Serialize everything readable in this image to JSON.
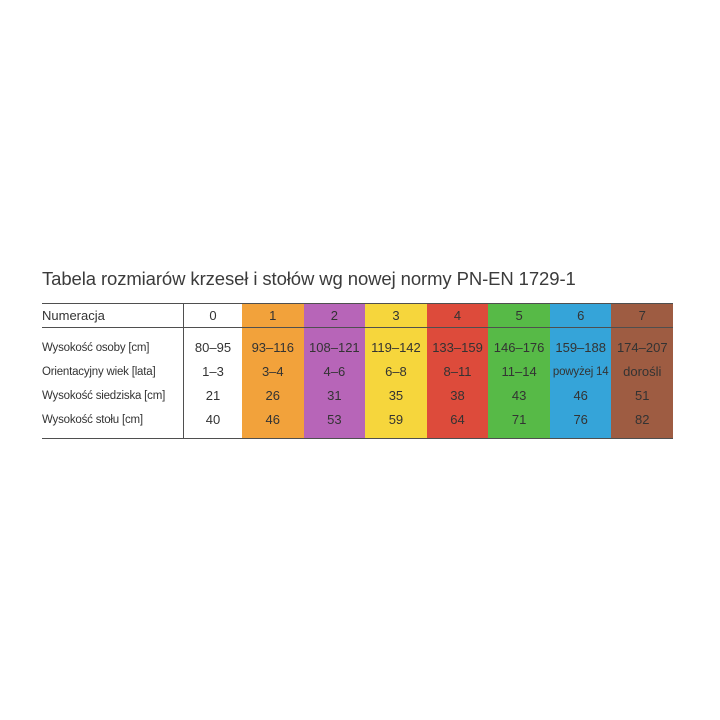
{
  "title": "Tabela rozmiarów krzeseł i stołów wg nowej normy PN-EN 1729-1",
  "colors": {
    "background": "#ffffff",
    "rule": "#4f4f4f",
    "text": "#333333",
    "title_text": "#3b3b3b"
  },
  "chart_data": {
    "type": "table",
    "title": "Tabela rozmiarów krzeseł i stołów wg nowej normy PN-EN 1729-1",
    "row_headers": [
      "Numeracja",
      "Wysokość osoby [cm]",
      "Orientacyjny wiek [lata]",
      "Wysokość siedziska [cm]",
      "Wysokość stołu [cm]"
    ],
    "columns": [
      {
        "numeracja": "0",
        "color": "#ffffff",
        "values": [
          "80–95",
          "1–3",
          "21",
          "40"
        ]
      },
      {
        "numeracja": "1",
        "color": "#f2a23b",
        "values": [
          "93–116",
          "3–4",
          "26",
          "46"
        ]
      },
      {
        "numeracja": "2",
        "color": "#b765b8",
        "values": [
          "108–121",
          "4–6",
          "31",
          "53"
        ]
      },
      {
        "numeracja": "3",
        "color": "#f6d63c",
        "values": [
          "119–142",
          "6–8",
          "35",
          "59"
        ]
      },
      {
        "numeracja": "4",
        "color": "#dd4b3b",
        "values": [
          "133–159",
          "8–11",
          "38",
          "64"
        ]
      },
      {
        "numeracja": "5",
        "color": "#57ba47",
        "values": [
          "146–176",
          "11–14",
          "43",
          "71"
        ]
      },
      {
        "numeracja": "6",
        "color": "#35a4d9",
        "values": [
          "159–188",
          "powyżej 14",
          "46",
          "76"
        ]
      },
      {
        "numeracja": "7",
        "color": "#9e5c42",
        "values": [
          "174–207",
          "dorośli",
          "51",
          "82"
        ]
      }
    ]
  }
}
